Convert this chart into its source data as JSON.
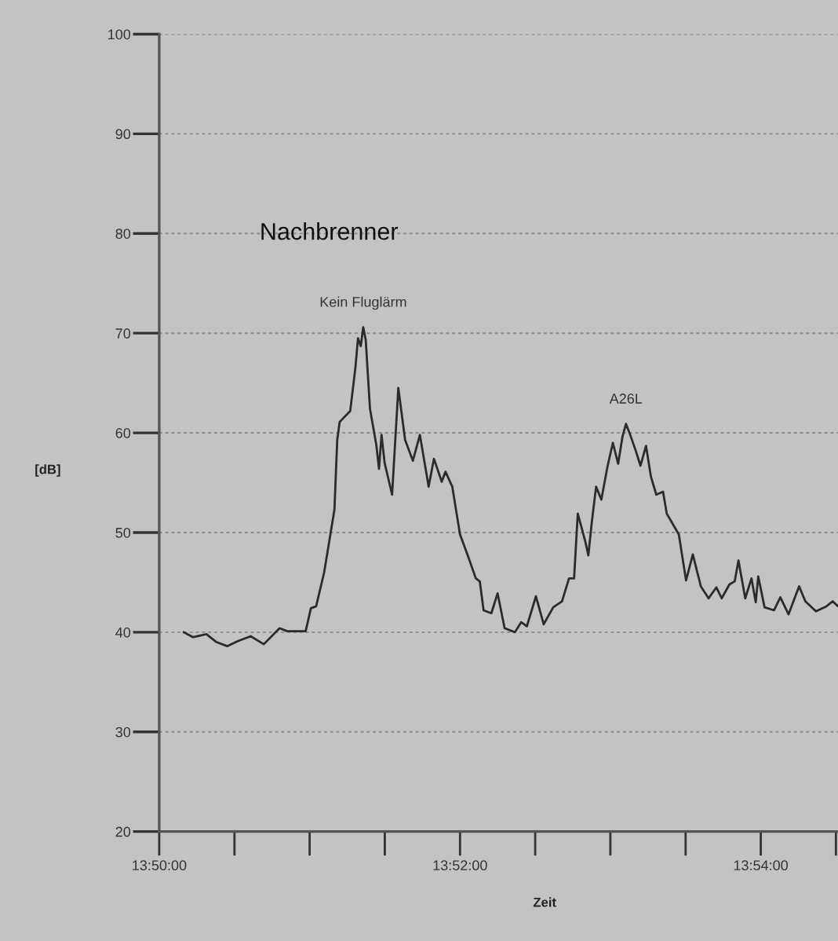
{
  "chart_data": {
    "type": "line",
    "xlabel": "Zeit",
    "ylabel": "[dB]",
    "annotations": [
      "Nachbrenner",
      {
        "text": "Kein Fluglärm",
        "x": 13.85594,
        "y": 70.6
      },
      {
        "text": "A26L",
        "x": 13.88506,
        "y": 60.9
      }
    ],
    "series": [
      {
        "color": "#2b2b2b",
        "x": [
          13.83606,
          13.83708,
          13.83856,
          13.83969,
          13.84086,
          13.84203,
          13.84347,
          13.84492,
          13.84667,
          13.84753,
          13.84956,
          13.85014,
          13.85072,
          13.85161,
          13.85275,
          13.85306,
          13.85333,
          13.8545,
          13.85508,
          13.85536,
          13.85567,
          13.85594,
          13.85622,
          13.85669,
          13.85739,
          13.85769,
          13.85797,
          13.85831,
          13.85914,
          13.85983,
          13.86058,
          13.86144,
          13.86222,
          13.86319,
          13.86378,
          13.86464,
          13.86506,
          13.86581,
          13.86667,
          13.86753,
          13.86842,
          13.86886,
          13.86928,
          13.87014,
          13.87083,
          13.87161,
          13.87275,
          13.87344,
          13.87408,
          13.87508,
          13.87594,
          13.877,
          13.87797,
          13.87875,
          13.87931,
          13.87972,
          13.88058,
          13.88089,
          13.88128,
          13.88175,
          13.88233,
          13.88303,
          13.88361,
          13.88419,
          13.88467,
          13.88506,
          13.88553,
          13.88611,
          13.88667,
          13.88728,
          13.88783,
          13.88842,
          13.88917,
          13.88958,
          13.89092,
          13.89172,
          13.89247,
          13.89336,
          13.89422,
          13.89508,
          13.89567,
          13.89653,
          13.89711,
          13.89753,
          13.89828,
          13.89897,
          13.89944,
          13.89972,
          13.90042,
          13.90147,
          13.90217,
          13.90308,
          13.90425,
          13.90494,
          13.90611,
          13.90728,
          13.90797,
          13.90856
        ],
        "values": [
          40.0,
          39.5,
          39.8,
          39.0,
          38.6,
          39.1,
          39.6,
          38.8,
          40.4,
          40.1,
          40.1,
          42.4,
          42.6,
          46.0,
          52.3,
          59.3,
          61.1,
          62.2,
          66.6,
          69.5,
          68.7,
          70.6,
          69.3,
          62.4,
          58.8,
          56.4,
          59.8,
          57.0,
          53.8,
          64.5,
          59.3,
          57.2,
          59.8,
          54.6,
          57.4,
          55.1,
          56.1,
          54.6,
          49.8,
          47.7,
          45.4,
          45.1,
          42.2,
          41.9,
          43.9,
          40.4,
          40.0,
          41.0,
          40.6,
          43.6,
          40.8,
          42.5,
          43.1,
          45.4,
          45.4,
          51.9,
          49.0,
          47.7,
          51.1,
          54.6,
          53.3,
          56.7,
          59.0,
          56.9,
          59.6,
          60.9,
          59.8,
          58.3,
          56.7,
          58.7,
          55.6,
          53.8,
          54.1,
          51.9,
          49.8,
          45.2,
          47.8,
          44.6,
          43.4,
          44.5,
          43.4,
          44.8,
          45.1,
          47.2,
          43.4,
          45.4,
          43.0,
          45.6,
          42.5,
          42.2,
          43.5,
          41.8,
          44.6,
          43.1,
          42.1,
          42.6,
          43.1,
          42.6
        ]
      }
    ],
    "xlim": [
      13.83333,
      13.90856
    ],
    "xticks": [
      {
        "value": 13.83333,
        "label": "13:50:00"
      },
      {
        "value": 13.84167,
        "label": null
      },
      {
        "value": 13.85,
        "label": null
      },
      {
        "value": 13.85833,
        "label": null
      },
      {
        "value": 13.86667,
        "label": "13:52:00"
      },
      {
        "value": 13.875,
        "label": null
      },
      {
        "value": 13.88333,
        "label": null
      },
      {
        "value": 13.89167,
        "label": null
      },
      {
        "value": 13.9,
        "label": "13:54:00"
      },
      {
        "value": 13.90833,
        "label": null
      }
    ],
    "ylim": [
      20,
      100
    ],
    "yticks": [
      20,
      30,
      40,
      50,
      60,
      70,
      80,
      90,
      100
    ],
    "grid": "y",
    "legend": false,
    "marker": "none",
    "line_style": "solid"
  }
}
